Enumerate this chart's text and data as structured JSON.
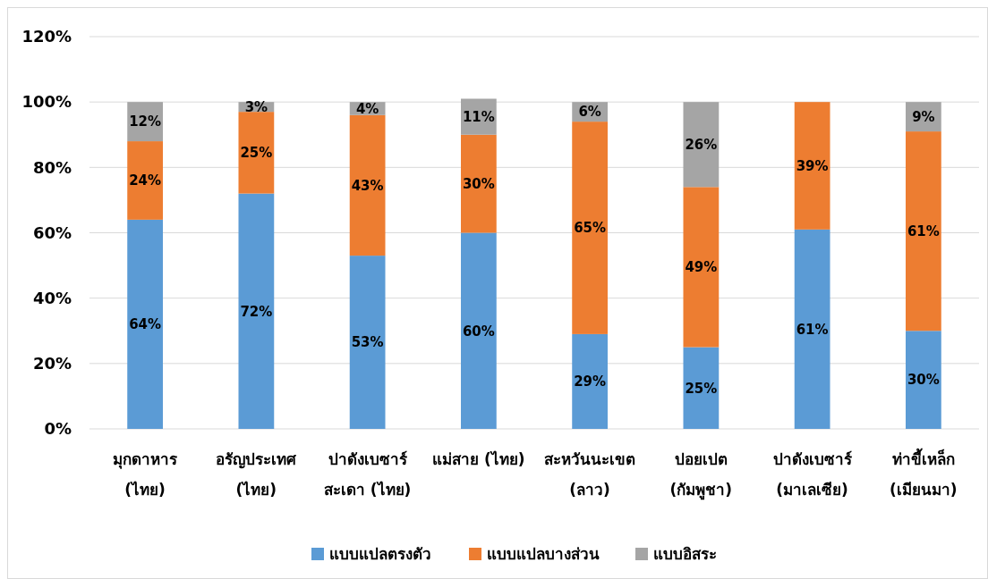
{
  "chart_data": {
    "type": "bar",
    "stacked": true,
    "categories": [
      "มุกดาหาร\n(ไทย)",
      "อรัญประเทศ\n(ไทย)",
      "ปาดังเบซาร์\nสะเดา (ไทย)",
      "แม่สาย (ไทย)",
      "สะหวันนะเขต\n(ลาว)",
      "ปอยเปต\n(กัมพูชา)",
      "ปาดังเบซาร์\n(มาเลเซีย)",
      "ท่าขี้เหล็ก\n(เมียนมา)"
    ],
    "series": [
      {
        "name": "แบบแปลตรงตัว",
        "color": "#5b9bd5",
        "values": [
          64,
          72,
          53,
          60,
          29,
          25,
          61,
          30
        ],
        "value_labels": [
          "64%",
          "72%",
          "53%",
          "60%",
          "29%",
          "25%",
          "61%",
          "30%"
        ]
      },
      {
        "name": "แบบแปลบางส่วน",
        "color": "#ed7d31",
        "values": [
          24,
          25,
          43,
          30,
          65,
          49,
          39,
          61
        ],
        "value_labels": [
          "24%",
          "25%",
          "43%",
          "30%",
          "65%",
          "49%",
          "39%",
          "61%"
        ]
      },
      {
        "name": "แบบอิสระ",
        "color": "#a5a5a5",
        "values": [
          12,
          3,
          4,
          11,
          6,
          26,
          null,
          9
        ],
        "value_labels": [
          "12%",
          "3%",
          "4%",
          "11%",
          "6%",
          "26%",
          null,
          "9%"
        ]
      }
    ],
    "ylim": [
      0,
      120
    ],
    "yticks": [
      {
        "value": 0,
        "label": "0%"
      },
      {
        "value": 20,
        "label": "20%"
      },
      {
        "value": 40,
        "label": "40%"
      },
      {
        "value": 60,
        "label": "60%"
      },
      {
        "value": 80,
        "label": "80%"
      },
      {
        "value": 100,
        "label": "100%"
      },
      {
        "value": 120,
        "label": "120%"
      }
    ],
    "grid": "y",
    "legend": "bottom"
  }
}
